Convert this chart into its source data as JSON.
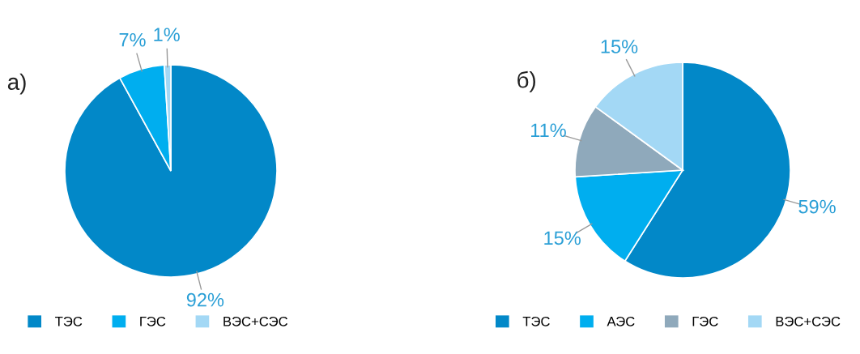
{
  "chart_data": [
    {
      "type": "pie",
      "title": "а)",
      "categories": [
        "ТЭС",
        "ГЭС",
        "ВЭС+СЭС"
      ],
      "values": [
        92,
        7,
        1
      ],
      "value_labels": [
        "92%",
        "7%",
        "1%"
      ],
      "colors": [
        "#0288c8",
        "#00aeef",
        "#a3d8f5"
      ],
      "legend": "bottom"
    },
    {
      "type": "pie",
      "title": "б)",
      "categories": [
        "ТЭС",
        "АЭС",
        "ГЭС",
        "ВЭС+СЭС"
      ],
      "values": [
        59,
        15,
        11,
        15
      ],
      "value_labels": [
        "59%",
        "15%",
        "11%",
        "15%"
      ],
      "colors": [
        "#0288c8",
        "#00aeef",
        "#8fa9bb",
        "#a3d8f5"
      ],
      "legend": "bottom"
    }
  ]
}
